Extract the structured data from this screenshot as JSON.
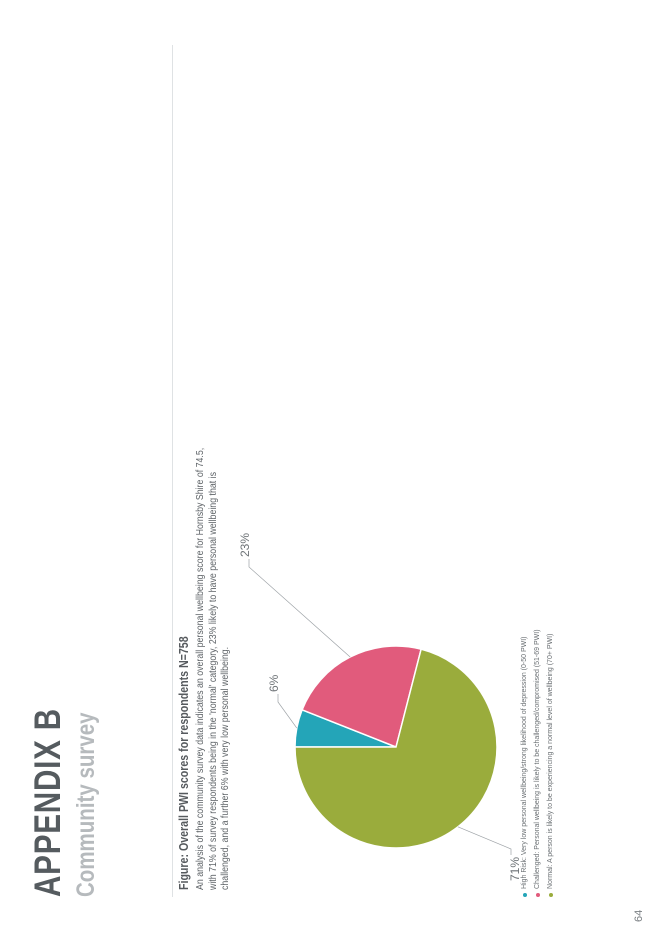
{
  "appendix": {
    "title": "APPENDIX B",
    "subtitle": "Community survey"
  },
  "figure": {
    "title": "Figure: Overall PWI scores for respondents N=758",
    "description": "An analysis of the community survey data indicates an overall personal wellbeing score for Hornsby Shire of 74.5, with 71% of survey respondents being in the 'normal' category, 23% likely to have personal wellbeing that is challenged, and a further 6% with very low personal wellbeing."
  },
  "chart_data": {
    "type": "pie",
    "categories": [
      "High Risk",
      "Challenged",
      "Normal"
    ],
    "values": [
      6,
      23,
      71
    ],
    "labels": [
      "6%",
      "23%",
      "71%"
    ],
    "colors": [
      "#24a5b8",
      "#e15b7c",
      "#9aac3c"
    ],
    "legend": [
      "High Risk: Very low personal wellbeing/strong likelihood of depression (0-50 PWI)",
      "Challenged: Personal wellbeing is likely to be challenged/compromised (51-69 PWI)",
      "Normal: A person is likely to be experiencing a normal level of wellbeing (70+ PWI)"
    ],
    "legend_placement": "bottom-left"
  },
  "page": {
    "number": "64"
  }
}
